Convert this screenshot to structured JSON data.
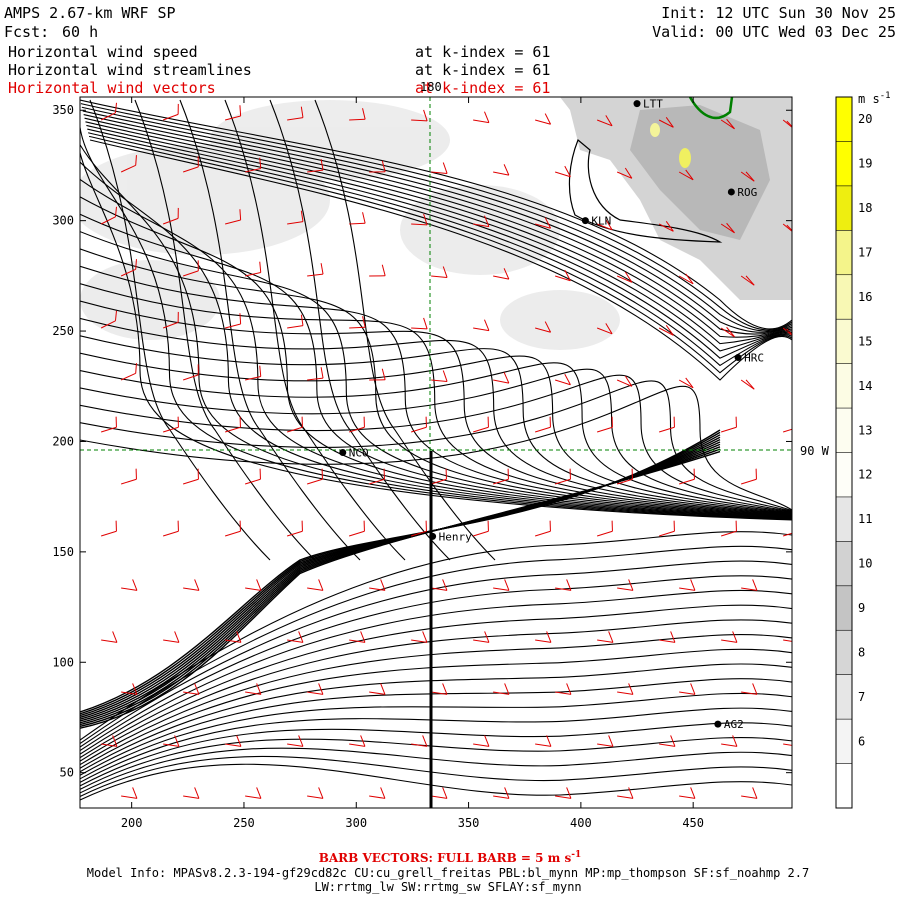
{
  "header": {
    "model": "AMPS 2.67-km WRF SP",
    "fcst_label": "Fcst:",
    "fcst_value": "60 h",
    "init": "Init: 12 UTC Sun 30 Nov 25",
    "valid": "Valid: 00 UTC Wed 03 Dec 25"
  },
  "fields": [
    {
      "name": "Horizontal wind speed",
      "level": "at k-index =  61",
      "color": "#000000"
    },
    {
      "name": "Horizontal wind streamlines",
      "level": "at k-index =  61",
      "color": "#000000"
    },
    {
      "name": "Horizontal wind vectors",
      "level": "at k-index =  61",
      "color": "#e00000"
    }
  ],
  "axes": {
    "x_ticks": [
      200,
      250,
      300,
      350,
      400,
      450
    ],
    "y_ticks": [
      50,
      100,
      150,
      200,
      250,
      300,
      350
    ],
    "x_range": [
      177,
      494
    ],
    "y_range": [
      34,
      356
    ]
  },
  "gridlines": {
    "meridian_label": "180",
    "parallel_label": "90 W"
  },
  "stations": [
    {
      "name": "LTT",
      "x": 425,
      "y": 353
    },
    {
      "name": "ROG",
      "x": 467,
      "y": 313
    },
    {
      "name": "KLN",
      "x": 402,
      "y": 300
    },
    {
      "name": "HRC",
      "x": 470,
      "y": 238
    },
    {
      "name": "NCO",
      "x": 294,
      "y": 195
    },
    {
      "name": "Henry",
      "x": 334,
      "y": 157
    },
    {
      "name": "AG2",
      "x": 461,
      "y": 72
    }
  ],
  "colorbar": {
    "unit": "m s",
    "unit_exp": "-1",
    "levels": [
      20,
      19,
      18,
      17,
      16,
      15,
      14,
      13,
      12,
      11,
      10,
      9,
      8,
      7,
      6
    ],
    "colors": [
      "#ffff00",
      "#ffff00",
      "#eeee10",
      "#f4f48a",
      "#f8f8b4",
      "#fafad0",
      "#fcfce4",
      "#fdfdf0",
      "#fefef8",
      "#e6e6e6",
      "#d2d2d2",
      "#c4c4c4",
      "#d6d6d6",
      "#e6e6e6",
      "#f4f4f4",
      "#ffffff"
    ]
  },
  "footer": {
    "barb_note": "BARB VECTORS:  FULL BARB = 5 m s",
    "barb_exp": "-1",
    "model_info": "Model Info: MPASv8.2.3-194-gf29cd82c CU:cu_grell_freitas PBL:bl_mynn MP:mp_thompson SF:sf_noahmp 2.7",
    "model_info2": "LW:rrtmg_lw SW:rrtmg_sw SFLAY:sf_mynn"
  }
}
